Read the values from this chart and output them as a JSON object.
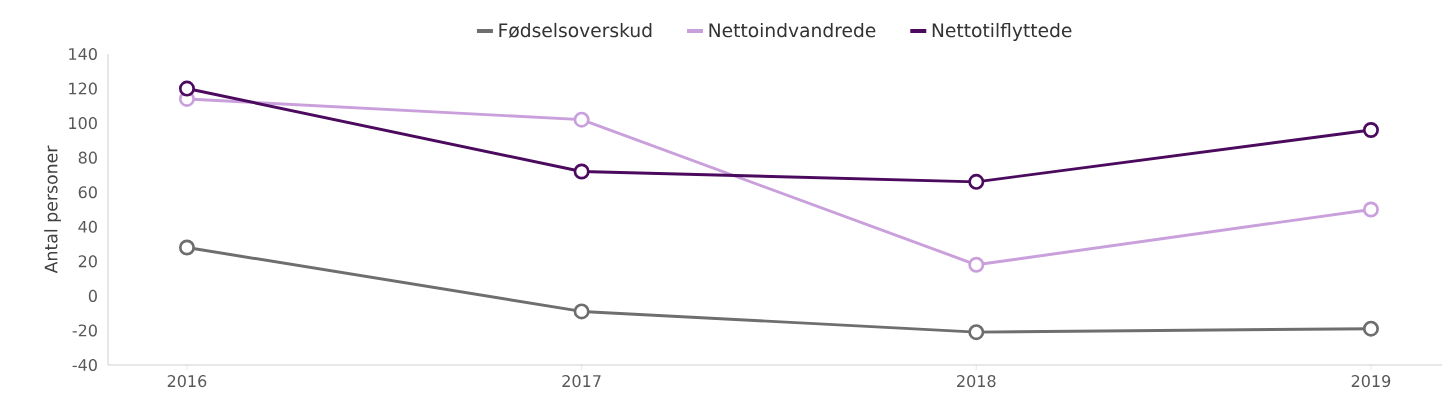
{
  "chart_data": {
    "type": "line",
    "ylabel": "Antal personer",
    "categories": [
      "2016",
      "2017",
      "2018",
      "2019"
    ],
    "series": [
      {
        "name": "Fødselsoverskud",
        "color": "#6e6e6e",
        "values": [
          28,
          -9,
          -21,
          -19
        ]
      },
      {
        "name": "Nettoindvandrede",
        "color": "#c9a0dc",
        "values": [
          114,
          102,
          18,
          50
        ]
      },
      {
        "name": "Nettotilflyttede",
        "color": "#4b0a5e",
        "values": [
          120,
          72,
          66,
          96
        ]
      }
    ],
    "ylim": [
      -40,
      140
    ],
    "yticks": [
      -40,
      -20,
      0,
      20,
      40,
      60,
      80,
      100,
      120,
      140
    ],
    "legend": "top",
    "marker": "circle"
  }
}
